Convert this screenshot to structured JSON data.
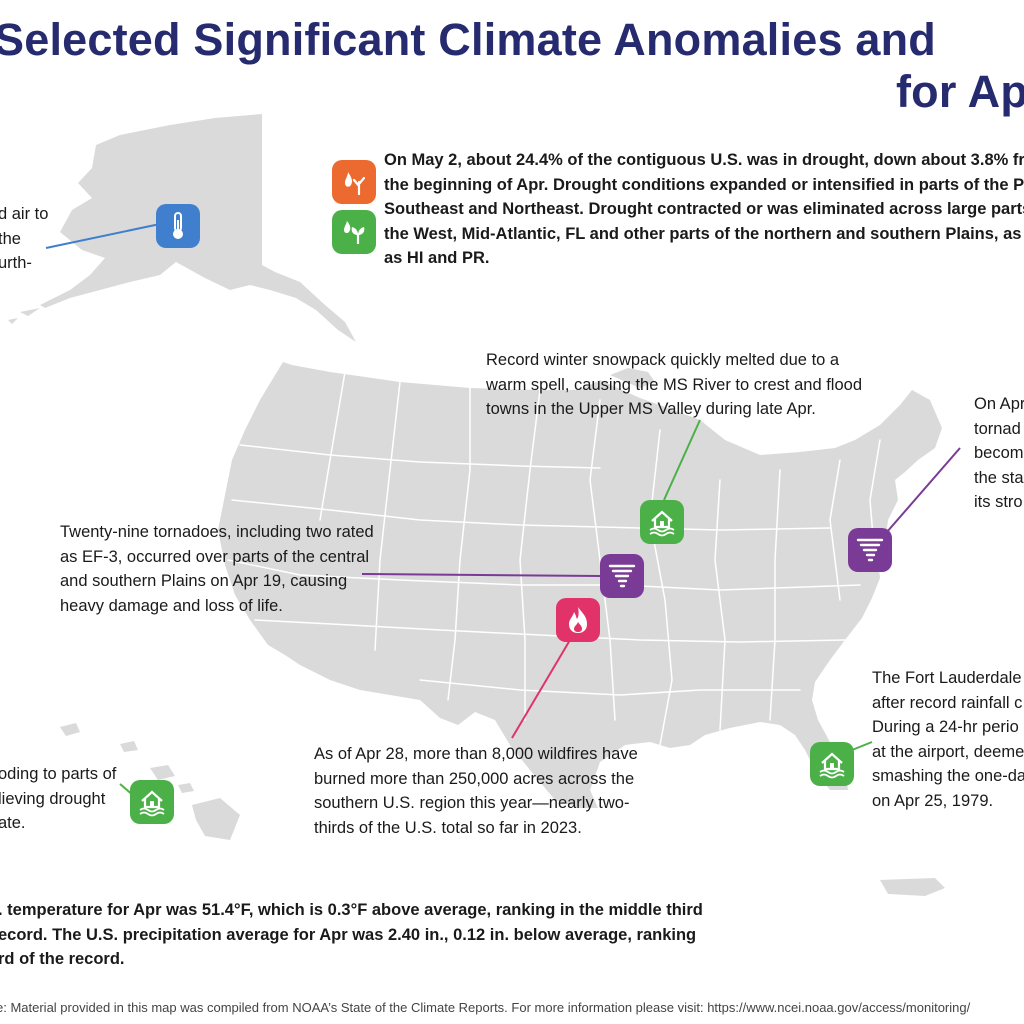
{
  "title": {
    "line1": "Selected Significant Climate Anomalies and",
    "line2": "for Ap"
  },
  "colors": {
    "land": "#dadada",
    "title": "#262a6e",
    "temperature": "#3f7fce",
    "drought": "#ec6a2f",
    "wet": "#4cb049",
    "tornado": "#7a3b96",
    "wildfire": "#e1336a"
  },
  "annotations": {
    "alaska": {
      "lines": [
        "d air to",
        "the",
        "urth-"
      ],
      "icon": "thermometer-icon"
    },
    "drought": {
      "lines": [
        "On May 2, about 24.4% of the contiguous U.S. was in drought, down about 3.8% fr",
        "the beginning of Apr. Drought conditions expanded or intensified in parts of the Pl",
        "Southeast and Northeast. Drought contracted or was eliminated across large parts",
        "the West, Mid-Atlantic, FL and other parts of the northern and southern Plains, as w",
        "as HI and PR."
      ],
      "icons": [
        "drought-icon",
        "wet-plant-icon"
      ]
    },
    "snowpack": {
      "lines": [
        "Record winter snowpack quickly melted due to a",
        "warm spell, causing the MS River to crest and flood",
        "towns in the Upper MS Valley during late Apr."
      ],
      "icon": "flood-icon"
    },
    "northeast": {
      "lines": [
        "On Apr",
        "tornad",
        "becom",
        "the sta",
        "its stro"
      ],
      "icon": "tornado-icon"
    },
    "plains": {
      "lines": [
        "Twenty-nine tornadoes, including two rated",
        "as EF-3, occurred over parts of the central",
        "and southern Plains on Apr 19, causing",
        "heavy damage and loss of life."
      ],
      "icon": "tornado-icon"
    },
    "wildfire": {
      "lines": [
        "As of Apr 28, more than 8,000 wildfires have",
        "burned more than 250,000 acres across the",
        "southern U.S. region this year—nearly two-",
        "thirds of the U.S. total so far in 2023."
      ],
      "icon": "wildfire-icon"
    },
    "florida": {
      "lines": [
        "The Fort Lauderdale",
        "after record rainfall c",
        "During a 24-hr perio",
        "at the airport, deeme",
        "smashing the one-da",
        "on Apr 25, 1979."
      ],
      "icon": "flood-icon"
    },
    "hawaii": {
      "lines": [
        "oding to parts of",
        "lieving drought",
        "ate."
      ],
      "icon": "flood-icon"
    }
  },
  "summary": {
    "lines": [
      ". temperature for Apr was 51.4°F, which is 0.3°F above average, ranking in the middle third",
      "ecord. The U.S. precipitation average for Apr was 2.40 in., 0.12 in. below average, ranking",
      "rd of the record."
    ]
  },
  "footer": "e: Material provided in this map was compiled from NOAA’s State of the Climate Reports. For more information please visit: https://www.ncei.noaa.gov/access/monitoring/"
}
